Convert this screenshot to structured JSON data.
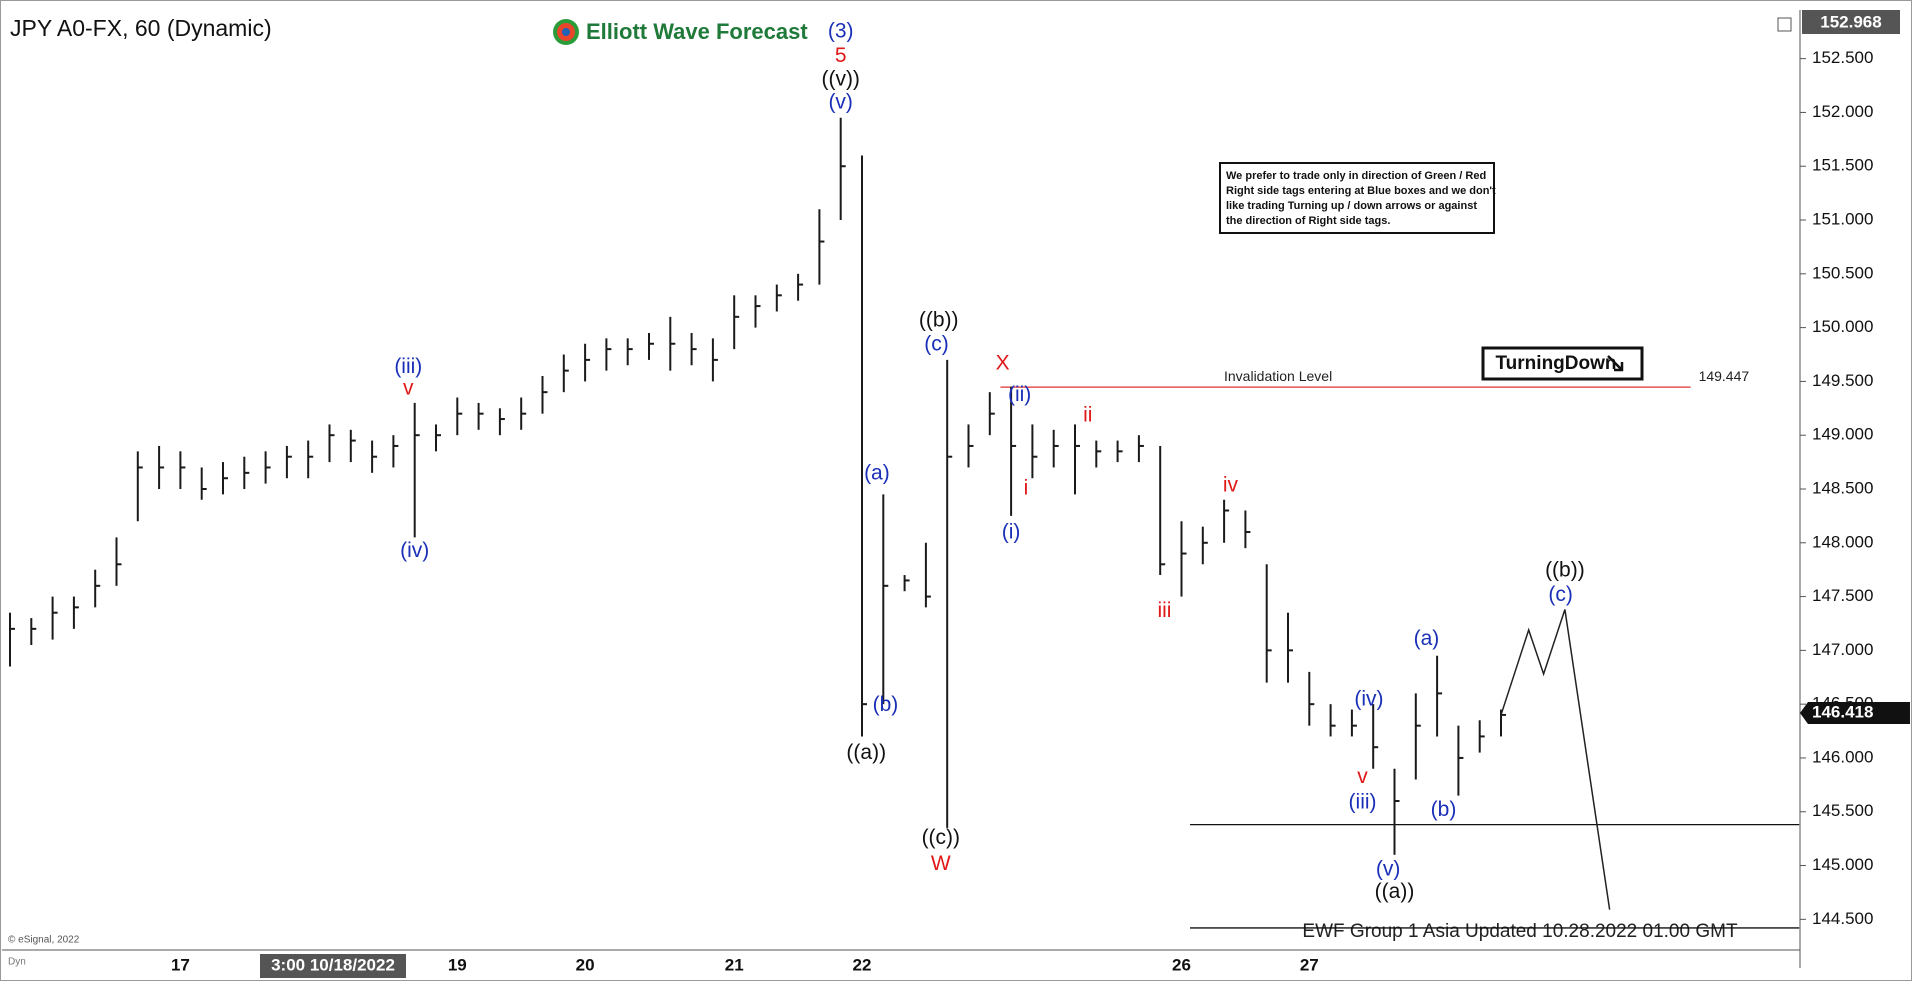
{
  "chart_data": {
    "type": "ohlc",
    "title": "JPY A0-FX, 60 (Dynamic)",
    "brand": "Elliott Wave Forecast",
    "categories": [
      null,
      null,
      null,
      null,
      null,
      null,
      null,
      null,
      "17",
      null,
      null,
      null,
      null,
      null,
      null,
      null,
      null,
      null,
      null,
      null,
      null,
      "19",
      null,
      null,
      null,
      null,
      null,
      "20",
      null,
      null,
      null,
      null,
      null,
      null,
      "21",
      null,
      null,
      null,
      null,
      null,
      "22",
      null,
      null,
      null,
      null,
      null,
      null,
      null,
      null,
      null,
      null,
      null,
      null,
      null,
      null,
      "26",
      null,
      null,
      null,
      null,
      null,
      "27",
      null,
      null,
      null,
      null,
      null,
      null,
      null,
      null,
      null
    ],
    "crosshair_label": "3:00 10/18/2022",
    "high": [
      147.35,
      147.3,
      147.5,
      147.5,
      147.75,
      148.05,
      148.85,
      148.9,
      148.85,
      148.7,
      148.75,
      148.8,
      148.85,
      148.9,
      148.95,
      149.1,
      149.05,
      148.95,
      149.0,
      149.3,
      149.1,
      149.35,
      149.3,
      149.25,
      149.35,
      149.55,
      149.75,
      149.85,
      149.9,
      149.9,
      149.95,
      150.1,
      149.95,
      149.9,
      150.3,
      150.3,
      150.4,
      150.5,
      151.1,
      151.95,
      151.6,
      148.45,
      147.7,
      148.0,
      149.7,
      149.1,
      149.4,
      149.45,
      149.1,
      149.05,
      149.1,
      148.95,
      148.95,
      149.0,
      148.9,
      148.2,
      148.15,
      148.4,
      148.3,
      147.8,
      147.35,
      146.8,
      146.5,
      146.45,
      146.5,
      145.9,
      146.6,
      146.95,
      146.3,
      146.35,
      146.45
    ],
    "low": [
      146.85,
      147.05,
      147.1,
      147.2,
      147.4,
      147.6,
      148.2,
      148.5,
      148.5,
      148.4,
      148.45,
      148.5,
      148.55,
      148.6,
      148.6,
      148.75,
      148.75,
      148.65,
      148.7,
      148.05,
      148.85,
      149.0,
      149.05,
      149.0,
      149.05,
      149.2,
      149.4,
      149.5,
      149.6,
      149.65,
      149.7,
      149.6,
      149.65,
      149.5,
      149.8,
      150.0,
      150.15,
      150.25,
      150.4,
      151.0,
      146.2,
      146.5,
      147.55,
      147.4,
      145.35,
      148.7,
      149.0,
      148.25,
      148.6,
      148.7,
      148.45,
      148.7,
      148.75,
      148.75,
      147.7,
      147.5,
      147.8,
      148.0,
      147.95,
      146.7,
      146.7,
      146.3,
      146.2,
      146.2,
      145.9,
      145.1,
      145.8,
      146.2,
      145.65,
      146.05,
      146.2
    ],
    "close": [
      147.2,
      147.2,
      147.35,
      147.4,
      147.6,
      147.8,
      148.7,
      148.7,
      148.7,
      148.5,
      148.6,
      148.65,
      148.7,
      148.8,
      148.8,
      149.0,
      148.95,
      148.8,
      148.9,
      149.0,
      149.0,
      149.2,
      149.2,
      149.15,
      149.2,
      149.4,
      149.6,
      149.7,
      149.8,
      149.8,
      149.85,
      149.85,
      149.8,
      149.7,
      150.1,
      150.2,
      150.3,
      150.4,
      150.8,
      151.5,
      146.5,
      147.6,
      147.65,
      147.5,
      148.8,
      148.9,
      149.2,
      148.9,
      148.8,
      148.9,
      148.9,
      148.85,
      148.85,
      148.9,
      147.8,
      147.9,
      148.0,
      148.3,
      148.1,
      147.0,
      147.0,
      146.5,
      146.3,
      146.3,
      146.1,
      145.6,
      146.3,
      146.6,
      146.0,
      146.2,
      146.4
    ],
    "color": "#1a1a1a",
    "ylim": [
      144.215,
      152.887
    ],
    "yticks": [
      {
        "value": 144.5,
        "label": "144.500"
      },
      {
        "value": 145,
        "label": "145.000"
      },
      {
        "value": 145.5,
        "label": "145.500"
      },
      {
        "value": 146,
        "label": "146.000"
      },
      {
        "value": 146.5,
        "label": "146.500"
      },
      {
        "value": 147,
        "label": "147.000"
      },
      {
        "value": 147.5,
        "label": "147.500"
      },
      {
        "value": 148,
        "label": "148.000"
      },
      {
        "value": 148.5,
        "label": "148.500"
      },
      {
        "value": 149,
        "label": "149.000"
      },
      {
        "value": 149.5,
        "label": "149.500"
      },
      {
        "value": 150,
        "label": "150.000"
      },
      {
        "value": 150.5,
        "label": "150.500"
      },
      {
        "value": 151,
        "label": "151.000"
      },
      {
        "value": 151.5,
        "label": "151.500"
      },
      {
        "value": 152,
        "label": "152.000"
      },
      {
        "value": 152.5,
        "label": "152.500"
      }
    ],
    "top_price": 152.968,
    "last_price": 146.418,
    "invalidation": {
      "label": "Invalidation Level",
      "value": 149.447,
      "x": [
        46.5,
        78.9
      ],
      "color": "#e03030"
    },
    "support_lines": [
      {
        "value": 145.38,
        "x": [
          55.4,
          84
        ]
      },
      {
        "value": 144.42,
        "x": [
          55.4,
          84
        ]
      }
    ],
    "projection": {
      "x": [
        70,
        71.3,
        72,
        73,
        75.1
      ],
      "y": [
        146.4,
        147.19,
        146.78,
        147.38,
        144.59
      ]
    },
    "annotations": [
      {
        "text": "(3)",
        "x": 39,
        "y": 152.75,
        "color": "#1a2fb8"
      },
      {
        "text": "5",
        "x": 39,
        "y": 152.52,
        "color": "#e01818"
      },
      {
        "text": "((v))",
        "x": 39,
        "y": 152.3,
        "color": "#111111"
      },
      {
        "text": "(v)",
        "x": 39,
        "y": 152.09,
        "color": "#1a2fb8"
      },
      {
        "text": "(iii)",
        "x": 18.7,
        "y": 149.63,
        "color": "#1a2fb8"
      },
      {
        "text": "v",
        "x": 18.7,
        "y": 149.43,
        "color": "#e01818"
      },
      {
        "text": "(iv)",
        "x": 19,
        "y": 147.92,
        "color": "#1a2fb8"
      },
      {
        "text": "(a)",
        "x": 40.7,
        "y": 148.64,
        "color": "#1a2fb8"
      },
      {
        "text": "(b)",
        "x": 41.1,
        "y": 146.49,
        "color": "#1a2fb8"
      },
      {
        "text": "((a))",
        "x": 40.2,
        "y": 146.04,
        "color": "#111111"
      },
      {
        "text": "((b))",
        "x": 43.6,
        "y": 150.06,
        "color": "#111111"
      },
      {
        "text": "(c)",
        "x": 43.5,
        "y": 149.84,
        "color": "#1a2fb8"
      },
      {
        "text": "((c))",
        "x": 43.7,
        "y": 145.25,
        "color": "#111111"
      },
      {
        "text": "W",
        "x": 43.7,
        "y": 145.01,
        "color": "#e01818"
      },
      {
        "text": "X",
        "x": 46.6,
        "y": 149.66,
        "color": "#e01818"
      },
      {
        "text": "(ii)",
        "x": 47.4,
        "y": 149.37,
        "color": "#1a2fb8"
      },
      {
        "text": "ii",
        "x": 50.6,
        "y": 149.18,
        "color": "#e01818"
      },
      {
        "text": "i",
        "x": 47.7,
        "y": 148.5,
        "color": "#e01818"
      },
      {
        "text": "(i)",
        "x": 47,
        "y": 148.09,
        "color": "#1a2fb8"
      },
      {
        "text": "iv",
        "x": 57.3,
        "y": 148.53,
        "color": "#e01818"
      },
      {
        "text": "iii",
        "x": 54.2,
        "y": 147.36,
        "color": "#e01818"
      },
      {
        "text": "(a)",
        "x": 66.5,
        "y": 147.1,
        "color": "#1a2fb8"
      },
      {
        "text": "(iv)",
        "x": 63.8,
        "y": 146.54,
        "color": "#1a2fb8"
      },
      {
        "text": "v",
        "x": 63.5,
        "y": 145.82,
        "color": "#e01818"
      },
      {
        "text": "(iii)",
        "x": 63.5,
        "y": 145.58,
        "color": "#1a2fb8"
      },
      {
        "text": "(b)",
        "x": 67.3,
        "y": 145.51,
        "color": "#1a2fb8"
      },
      {
        "text": "(v)",
        "x": 64.7,
        "y": 144.96,
        "color": "#1a2fb8"
      },
      {
        "text": "((a))",
        "x": 65,
        "y": 144.75,
        "color": "#111111"
      },
      {
        "text": "((b))",
        "x": 73,
        "y": 147.74,
        "color": "#111111"
      },
      {
        "text": "(c)",
        "x": 72.8,
        "y": 147.51,
        "color": "#1a2fb8"
      }
    ],
    "note_lines": [
      "We prefer to trade only in direction of Green / Red",
      "Right side tags entering at Blue boxes and we don't",
      "like trading Turning up / down arrows or against",
      "the direction of Right side tags."
    ],
    "badge": "TurningDown",
    "footer": "EWF Group 1 Asia Updated 10.28.2022 01.00 GMT",
    "copyright": "© eSignal, 2022",
    "corner": "Dyn"
  }
}
